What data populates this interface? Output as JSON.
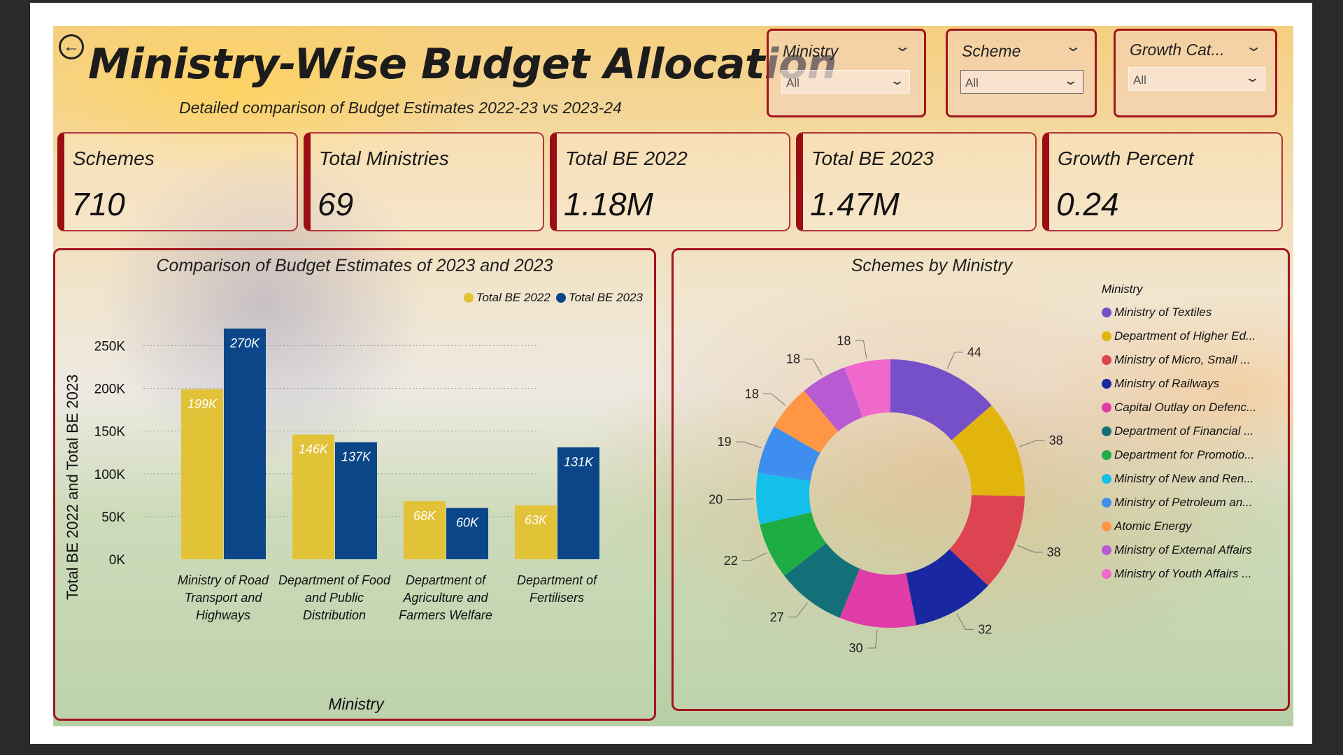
{
  "header": {
    "title": "Ministry-Wise Budget Allocation",
    "subtitle": "Detailed comparison of  Budget Estimates 2022-23 vs 2023-24",
    "back_icon": "back-arrow-icon"
  },
  "slicers": [
    {
      "label": "Ministry",
      "value": "All"
    },
    {
      "label": "Scheme",
      "value": "All"
    },
    {
      "label": "Growth Cat...",
      "value": "All"
    }
  ],
  "kpis": [
    {
      "label": "Schemes",
      "value": "710"
    },
    {
      "label": "Total Ministries",
      "value": "69"
    },
    {
      "label": "Total BE 2022",
      "value": "1.18M"
    },
    {
      "label": "Total BE 2023",
      "value": "1.47M"
    },
    {
      "label": "Growth Percent",
      "value": "0.24"
    }
  ],
  "colors": {
    "accent": "#a2151a",
    "series_2022": "#e2c236",
    "series_2023": "#0b4688"
  },
  "chart_data": [
    {
      "type": "bar",
      "title": "Comparison of Budget Estimates of 2023 and 2023",
      "xlabel": "Ministry",
      "ylabel": "Total BE 2022 and Total BE 2023",
      "categories": [
        "Ministry of Road Transport and Highways",
        "Department of Food and Public Distribution",
        "Department of Agriculture and Farmers Welfare",
        "Department of Fertilisers"
      ],
      "series": [
        {
          "name": "Total BE 2022",
          "values": [
            199000,
            146000,
            68000,
            63000
          ],
          "labels": [
            "199K",
            "146K",
            "68K",
            "63K"
          ],
          "color": "#e2c236"
        },
        {
          "name": "Total BE 2023",
          "values": [
            270000,
            137000,
            60000,
            131000
          ],
          "labels": [
            "270K",
            "137K",
            "60K",
            "131K"
          ],
          "color": "#0b4688"
        }
      ],
      "ylim": [
        0,
        270000
      ],
      "yticks": [
        0,
        50000,
        100000,
        150000,
        200000,
        250000
      ],
      "ytick_labels": [
        "0K",
        "50K",
        "100K",
        "150K",
        "200K",
        "250K"
      ],
      "grid": true,
      "legend": "top-right"
    },
    {
      "type": "pie",
      "title": "Schemes by Ministry",
      "legend_title": "Ministry",
      "legend": "right",
      "donut": true,
      "slices": [
        {
          "label": "Ministry of Textiles",
          "value": 44,
          "color": "#7650c8"
        },
        {
          "label": "Department of Higher Ed...",
          "value": 38,
          "color": "#e2b40e"
        },
        {
          "label": "Ministry of Micro, Small ...",
          "value": 38,
          "color": "#dc4452"
        },
        {
          "label": "Ministry of Railways",
          "value": 32,
          "color": "#1928a0"
        },
        {
          "label": "Capital Outlay on Defenc...",
          "value": 30,
          "color": "#e03ca8"
        },
        {
          "label": "Department of Financial ...",
          "value": 27,
          "color": "#137078"
        },
        {
          "label": "Department for Promotio...",
          "value": 22,
          "color": "#1eac44"
        },
        {
          "label": "Ministry of New and Ren...",
          "value": 20,
          "color": "#14c0ea"
        },
        {
          "label": "Ministry of Petroleum an...",
          "value": 19,
          "color": "#3e8ef0"
        },
        {
          "label": "Atomic Energy",
          "value": 18,
          "color": "#ff9644"
        },
        {
          "label": "Ministry of External Affairs",
          "value": 18,
          "color": "#b85ad2"
        },
        {
          "label": "Ministry of Youth Affairs ...",
          "value": 18,
          "color": "#f068cc"
        }
      ]
    }
  ]
}
